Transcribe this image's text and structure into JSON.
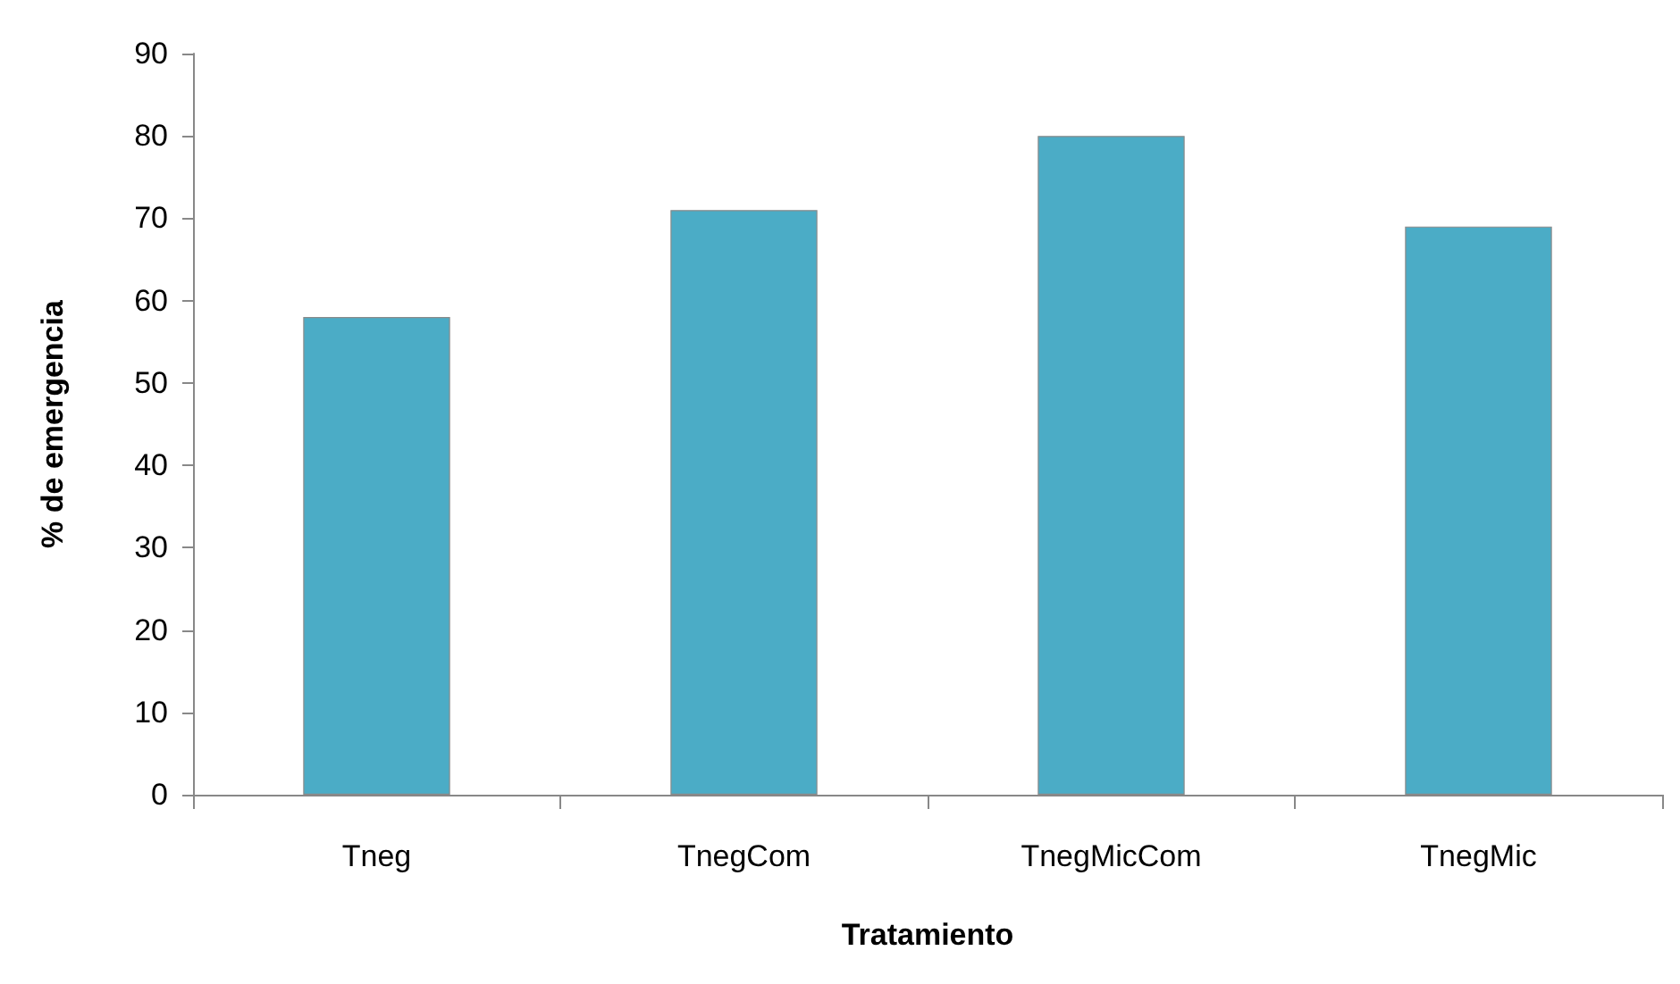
{
  "chart_data": {
    "type": "bar",
    "xlabel": "Tratamiento",
    "ylabel": "% de emergencia",
    "categories": [
      "Tneg",
      "TnegCom",
      "TnegMicCom",
      "TnegMic"
    ],
    "values": [
      58,
      71,
      80,
      69
    ],
    "color": "#4bacc6",
    "ylim": [
      0,
      90
    ],
    "yticks": [
      0,
      10,
      20,
      30,
      40,
      50,
      60,
      70,
      80,
      90
    ],
    "grid": false
  }
}
